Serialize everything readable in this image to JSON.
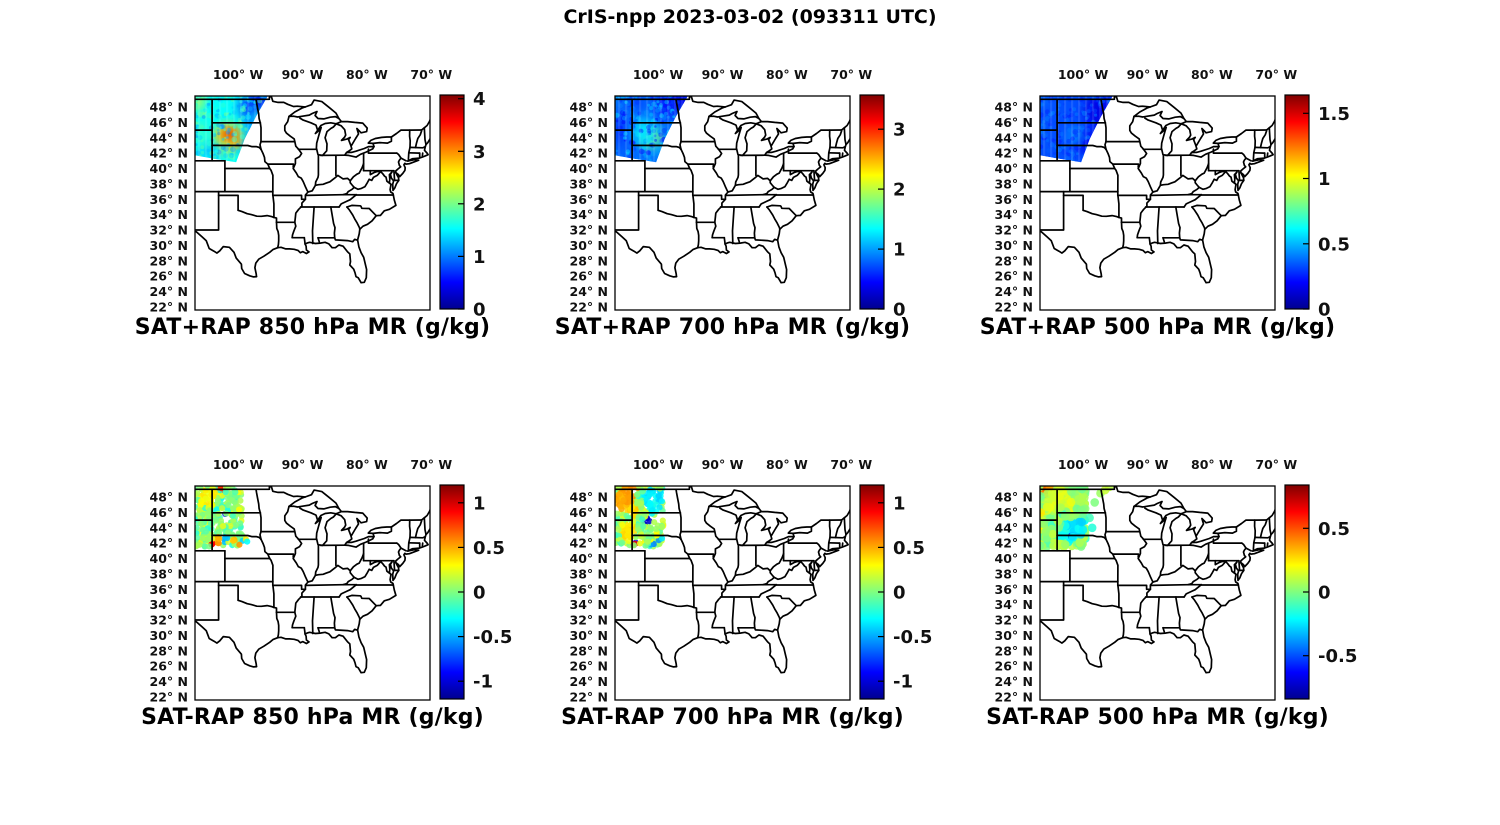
{
  "figure_title": "CrIS-npp 2023-03-02 (093311 UTC)",
  "axis": {
    "lon_tick_labels": [
      "100° W",
      "90° W",
      "80° W",
      "70° W"
    ],
    "lat_tick_labels": [
      "48° N",
      "46° N",
      "44° N",
      "42° N",
      "40° N",
      "38° N",
      "36° N",
      "34° N",
      "32° N",
      "30° N",
      "28° N",
      "26° N",
      "24° N",
      "22° N"
    ]
  },
  "chart_data": {
    "type": "heatmap",
    "layout": "2x3 grid of US state-boundary maps with vertical jet colorbars",
    "region_note": "CrIS-npp retrieval swath over the northern Great Plains (MT/WY/ND/SD/NE); eastern-central US basemap",
    "colormap": "jet",
    "lon_range": [
      -106.7,
      -70.2
    ],
    "lat_range": [
      21.6,
      49.43
    ],
    "lon_ticks": [
      -100,
      -90,
      -80,
      -70
    ],
    "lat_ticks": [
      48,
      46,
      44,
      42,
      40,
      38,
      36,
      34,
      32,
      30,
      28,
      26,
      24,
      22
    ],
    "swath_polygon": [
      [
        -106.7,
        49.43
      ],
      [
        -95.4,
        49.43
      ],
      [
        -97.2,
        46.8
      ],
      [
        -99.0,
        43.8
      ],
      [
        -100.3,
        40.8
      ],
      [
        -104.0,
        41.3
      ],
      [
        -106.7,
        41.7
      ]
    ],
    "panels": [
      {
        "id": "sat_plus_rap_850",
        "row": 0,
        "col": 0,
        "title": "SAT+RAP 850 hPa MR (g/kg)",
        "render": "swath",
        "value_range": [
          0,
          4.07
        ],
        "colorbar_ticks": [
          0,
          1,
          2,
          3,
          4
        ],
        "base_value": 1.55,
        "speckle": 0.5,
        "features": [
          [
            -106.2,
            48.8,
            0.9,
            1.3,
            2.3
          ],
          [
            -96.8,
            48.9,
            1.6,
            1.4,
            0.45
          ],
          [
            -98.6,
            48.0,
            1.3,
            1.6,
            0.75
          ],
          [
            -97.9,
            45.6,
            0.9,
            1.4,
            0.95
          ],
          [
            -99.2,
            43.3,
            0.7,
            1.2,
            1.0
          ],
          [
            -101.6,
            44.15,
            2.1,
            1.7,
            2.6
          ],
          [
            -101.5,
            44.2,
            1.4,
            1.1,
            3.15
          ],
          [
            -101.25,
            44.5,
            0.7,
            0.5,
            3.85
          ],
          [
            -100.7,
            43.2,
            0.6,
            0.7,
            3.0
          ],
          [
            -102.3,
            42.6,
            1.2,
            0.9,
            2.15
          ],
          [
            -104.5,
            42.3,
            2.0,
            1.0,
            1.3
          ],
          [
            -105.8,
            44.5,
            1.0,
            2.2,
            1.75
          ]
        ]
      },
      {
        "id": "sat_plus_rap_700",
        "row": 0,
        "col": 1,
        "title": "SAT+RAP 700 hPa MR (g/kg)",
        "render": "swath",
        "value_range": [
          0,
          3.57
        ],
        "colorbar_ticks": [
          0,
          1,
          2,
          3
        ],
        "base_value": 0.85,
        "speckle": 0.45,
        "features": [
          [
            -96.9,
            48.9,
            1.6,
            1.4,
            0.3
          ],
          [
            -98.9,
            48.3,
            1.6,
            1.8,
            0.5
          ],
          [
            -103.5,
            48.6,
            1.8,
            1.2,
            0.7
          ],
          [
            -101.1,
            43.9,
            1.5,
            1.2,
            1.9
          ],
          [
            -100.85,
            44.1,
            0.7,
            0.55,
            2.2
          ],
          [
            -102.1,
            44.6,
            2.1,
            1.9,
            1.25
          ],
          [
            -99.9,
            42.6,
            0.8,
            0.9,
            1.1
          ],
          [
            -105.9,
            45.0,
            0.9,
            2.4,
            0.6
          ],
          [
            -104.8,
            42.3,
            1.6,
            0.9,
            0.75
          ]
        ]
      },
      {
        "id": "sat_plus_rap_500",
        "row": 0,
        "col": 2,
        "title": "SAT+RAP 500 hPa MR (g/kg)",
        "render": "swath",
        "value_range": [
          0,
          1.64
        ],
        "colorbar_ticks": [
          0,
          0.5,
          1,
          1.5
        ],
        "base_value": 0.33,
        "speckle": 0.1,
        "features": [
          [
            -97.6,
            47.5,
            2.2,
            2.4,
            0.16
          ],
          [
            -99.6,
            43.6,
            1.4,
            1.8,
            0.18
          ],
          [
            -106.0,
            48.9,
            1.0,
            0.8,
            0.38
          ],
          [
            -100.9,
            44.6,
            0.75,
            0.55,
            0.56
          ],
          [
            -101.5,
            44.1,
            1.3,
            1.0,
            0.42
          ],
          [
            -105.9,
            44.0,
            0.9,
            2.0,
            0.34
          ]
        ]
      },
      {
        "id": "sat_minus_rap_850",
        "row": 1,
        "col": 0,
        "title": "SAT-RAP 850 hPa MR (g/kg)",
        "render": "scatter",
        "value_range": [
          -1.2,
          1.2
        ],
        "colorbar_ticks": [
          -1,
          -0.5,
          0,
          0.5,
          1
        ],
        "base_value": 0.02,
        "spread": 0.32,
        "dot_count": 330,
        "dot_radius": 3.1,
        "lon_max": -99.3,
        "features": [
          [
            -104.05,
            41.95,
            0.5,
            0.95
          ],
          [
            -103.3,
            42.35,
            0.55,
            0.5
          ],
          [
            -102.2,
            42.45,
            0.5,
            -0.45
          ],
          [
            -102.5,
            45.8,
            0.45,
            -0.95
          ],
          [
            -102.1,
            44.7,
            0.4,
            -0.75
          ],
          [
            -102.7,
            49.2,
            0.5,
            0.8
          ],
          [
            -104.6,
            48.0,
            1.2,
            0.3
          ],
          [
            -100.9,
            42.4,
            0.5,
            0.45
          ]
        ],
        "extra_dots": [
          [
            -99.3,
            42.3,
            -0.4
          ],
          [
            -98.8,
            42.5,
            0.35
          ],
          [
            -99.8,
            41.8,
            0.55
          ],
          [
            -98.6,
            42.2,
            -0.3
          ]
        ]
      },
      {
        "id": "sat_minus_rap_700",
        "row": 1,
        "col": 1,
        "title": "SAT-RAP 700 hPa MR (g/kg)",
        "render": "scatter",
        "value_range": [
          -1.2,
          1.2
        ],
        "colorbar_ticks": [
          -1,
          -0.5,
          0,
          0.5,
          1
        ],
        "base_value": 0.05,
        "spread": 0.3,
        "dot_count": 360,
        "dot_radius": 3.1,
        "lon_max": -99.2,
        "features": [
          [
            -105.5,
            47.6,
            1.4,
            0.5
          ],
          [
            -104.3,
            48.9,
            1.0,
            0.55
          ],
          [
            -103.9,
            46.3,
            1.0,
            0.4
          ],
          [
            -100.9,
            47.9,
            1.4,
            -0.35
          ],
          [
            -100.6,
            46.6,
            0.9,
            -0.3
          ],
          [
            -101.85,
            44.85,
            0.55,
            -1.0
          ],
          [
            -103.65,
            42.1,
            0.35,
            1.0
          ],
          [
            -103.2,
            42.35,
            0.4,
            -0.9
          ],
          [
            -104.6,
            43.4,
            1.1,
            0.35
          ],
          [
            -101.05,
            41.95,
            0.35,
            -0.55
          ]
        ],
        "extra_dots": [
          [
            -99.9,
            42.4,
            -0.55
          ],
          [
            -99.4,
            42.6,
            -0.35
          ],
          [
            -100.2,
            43.0,
            0.3
          ]
        ]
      },
      {
        "id": "sat_minus_rap_500",
        "row": 1,
        "col": 2,
        "title": "SAT-RAP 500 hPa MR (g/kg)",
        "render": "scatter",
        "value_range": [
          -0.84,
          0.84
        ],
        "colorbar_ticks": [
          -0.5,
          0,
          0.5
        ],
        "base_value": 0.03,
        "spread": 0.17,
        "dot_count": 430,
        "dot_radius": 4.3,
        "lon_max": -99.6,
        "features": [
          [
            -106.15,
            48.7,
            0.55,
            0.62
          ],
          [
            -105.4,
            48.95,
            0.8,
            0.42
          ],
          [
            -106.3,
            46.0,
            0.6,
            0.3
          ],
          [
            -106.4,
            44.0,
            0.5,
            0.25
          ],
          [
            -103.9,
            47.6,
            1.8,
            0.12
          ],
          [
            -101.6,
            44.0,
            1.4,
            -0.22
          ],
          [
            -102.6,
            43.1,
            1.0,
            -0.18
          ],
          [
            -101.75,
            43.15,
            0.3,
            -0.5
          ],
          [
            -100.4,
            44.6,
            0.7,
            -0.25
          ]
        ],
        "extra_dots": [
          [
            -95.95,
            49.3,
            0.1
          ],
          [
            -97.3,
            48.5,
            0.05
          ],
          [
            -96.6,
            48.9,
            0.12
          ],
          [
            -98.2,
            47.3,
            0.0
          ],
          [
            -99.0,
            45.3,
            -0.1
          ],
          [
            -98.6,
            44.0,
            -0.15
          ]
        ]
      }
    ]
  }
}
